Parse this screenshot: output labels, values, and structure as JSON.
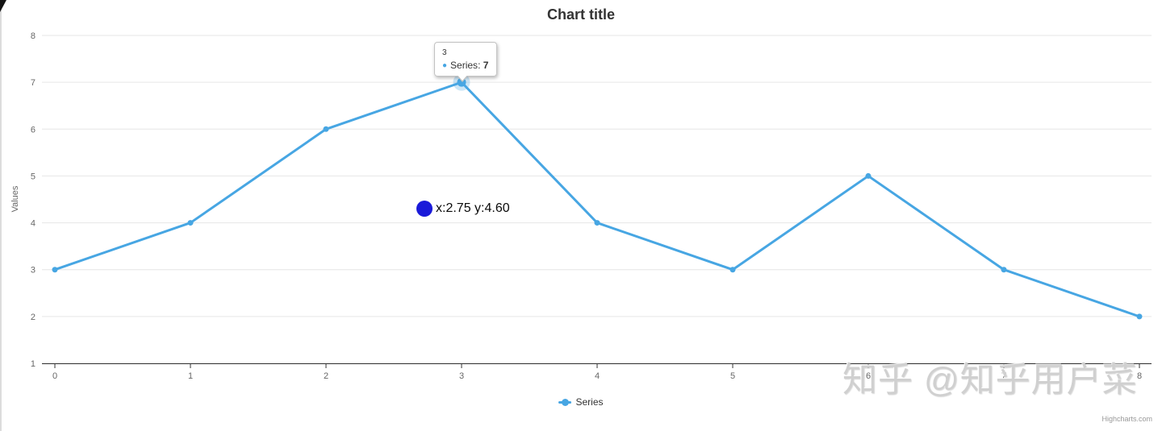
{
  "title": "Chart title",
  "chart_data": {
    "type": "line",
    "title": "Chart title",
    "xlabel": "",
    "ylabel": "Values",
    "x": [
      0,
      1,
      2,
      3,
      4,
      5,
      6,
      7,
      8
    ],
    "series": [
      {
        "name": "Series",
        "values": [
          3,
          4,
          6,
          7,
          4,
          3,
          5,
          3,
          2
        ],
        "color": "#47a6e3"
      }
    ],
    "xticks": [
      "0",
      "1",
      "2",
      "3",
      "4",
      "5",
      "6",
      "7",
      "8"
    ],
    "yticks": [
      "1",
      "2",
      "3",
      "4",
      "5",
      "6",
      "7",
      "8"
    ],
    "xlim": [
      0,
      8
    ],
    "ylim": [
      1,
      8
    ],
    "grid": "horizontal-only",
    "legend_position": "bottom-center"
  },
  "tooltip": {
    "header": "3",
    "series_label": "Series",
    "separator": ": ",
    "value": "7",
    "point_index": 3
  },
  "annotation": {
    "text": "x:2.75 y:4.60"
  },
  "legend": {
    "label": "Series"
  },
  "watermark": {
    "text": "知乎 @知乎用户菜"
  },
  "credits": {
    "label": "Highcharts.com"
  },
  "colors": {
    "series": "#47a6e3",
    "halo": "rgba(71,166,227,0.28)",
    "grid": "#e6e6e6",
    "axis_line": "#333333",
    "tick_label": "#666666",
    "axis_title": "#666666",
    "title_text": "#333333",
    "annotation_dot": "#1a1ad9",
    "watermark_text": "#d0d0d0",
    "credits_text": "#999999"
  }
}
